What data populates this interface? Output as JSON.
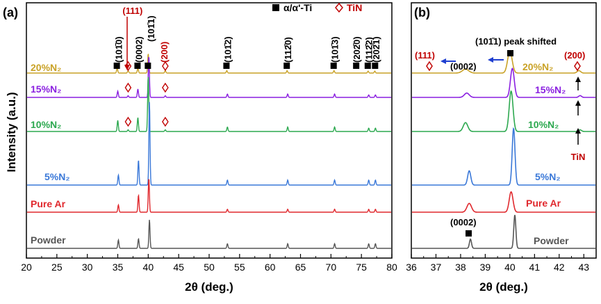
{
  "chart_data": [
    {
      "type": "line",
      "panel_label": "(a)",
      "xlabel": "2θ (deg.)",
      "ylabel": "Intensity (a.u.)",
      "xlim": [
        20,
        80
      ],
      "xticks": [
        "20",
        "25",
        "30",
        "35",
        "40",
        "45",
        "50",
        "55",
        "60",
        "65",
        "70",
        "75",
        "80"
      ],
      "legend": {
        "items": [
          {
            "marker": "square",
            "label": "α/α'-Ti"
          },
          {
            "marker": "diamond",
            "label": "TiN",
            "color": "#c00000"
          }
        ],
        "placement": "top-right"
      },
      "ti_peaks": [
        35.1,
        38.4,
        40.2,
        53.0,
        62.9,
        70.6,
        76.2,
        77.3
      ],
      "peak_labels": [
        {
          "x": 35.1,
          "text": "(101̄0)",
          "color": "#000000"
        },
        {
          "x": 36.7,
          "text": "(111)",
          "color": "#c00000"
        },
        {
          "x": 38.4,
          "text": "(0002)",
          "color": "#000000"
        },
        {
          "x": 40.2,
          "text": "(101̄1)",
          "color": "#000000"
        },
        {
          "x": 42.7,
          "text": "(200)",
          "color": "#c00000"
        },
        {
          "x": 53.0,
          "text": "(101̄2)",
          "color": "#000000"
        },
        {
          "x": 62.9,
          "text": "(112̄0)",
          "color": "#000000"
        },
        {
          "x": 70.6,
          "text": "(101̄3)",
          "color": "#000000"
        },
        {
          "x": 74.2,
          "text": "(202̄0)",
          "color": "#000000"
        },
        {
          "x": 76.2,
          "text": "(112̄2)",
          "color": "#000000"
        },
        {
          "x": 77.4,
          "text": "(202̄1)",
          "color": "#000000"
        }
      ],
      "series": [
        {
          "name": "20%N₂",
          "color": "#c9a227",
          "peaks": [
            [
              34.9,
              0.1
            ],
            [
              36.7,
              0.05
            ],
            [
              38.3,
              0.1
            ],
            [
              40.0,
              0.4
            ],
            [
              42.8,
              0.05
            ],
            [
              52.9,
              0.05
            ],
            [
              62.8,
              0.05
            ],
            [
              70.5,
              0.05
            ],
            [
              76.1,
              0.04
            ],
            [
              77.2,
              0.04
            ]
          ],
          "markers": [
            {
              "type": "square",
              "x": 34.9
            },
            {
              "type": "diamond",
              "x": 36.7
            },
            {
              "type": "square",
              "x": 38.3
            },
            {
              "type": "square",
              "x": 40.0
            },
            {
              "type": "diamond",
              "x": 42.8
            },
            {
              "type": "square",
              "x": 52.9
            },
            {
              "type": "square",
              "x": 62.8
            },
            {
              "type": "square",
              "x": 70.5
            },
            {
              "type": "square",
              "x": 74.2
            },
            {
              "type": "square",
              "x": 76.1
            },
            {
              "type": "square",
              "x": 77.3
            }
          ]
        },
        {
          "name": "15%N₂",
          "color": "#8a1fe0",
          "peaks": [
            [
              35.0,
              0.15
            ],
            [
              36.7,
              0.04
            ],
            [
              38.3,
              0.2
            ],
            [
              40.1,
              1.0
            ],
            [
              42.8,
              0.04
            ],
            [
              53.0,
              0.08
            ],
            [
              62.9,
              0.08
            ],
            [
              70.6,
              0.08
            ],
            [
              76.2,
              0.06
            ],
            [
              77.3,
              0.06
            ]
          ],
          "markers": [
            {
              "type": "diamond",
              "x": 36.7
            },
            {
              "type": "diamond",
              "x": 42.8
            }
          ]
        },
        {
          "name": "10%N₂",
          "color": "#2ca84f",
          "peaks": [
            [
              35.0,
              0.2
            ],
            [
              36.7,
              0.03
            ],
            [
              38.3,
              0.25
            ],
            [
              40.0,
              1.0
            ],
            [
              42.8,
              0.03
            ],
            [
              53.0,
              0.08
            ],
            [
              62.9,
              0.08
            ],
            [
              70.6,
              0.08
            ],
            [
              76.2,
              0.06
            ],
            [
              77.3,
              0.06
            ]
          ],
          "markers": [
            {
              "type": "diamond",
              "x": 36.7
            },
            {
              "type": "diamond",
              "x": 42.8
            }
          ]
        },
        {
          "name": "5%N₂",
          "color": "#3a78d8",
          "peaks": [
            [
              35.1,
              0.12
            ],
            [
              38.4,
              0.3
            ],
            [
              40.2,
              1.0
            ],
            [
              53.0,
              0.06
            ],
            [
              62.9,
              0.06
            ],
            [
              70.6,
              0.06
            ],
            [
              76.2,
              0.06
            ],
            [
              77.3,
              0.06
            ]
          ],
          "markers": []
        },
        {
          "name": "Pure Ar",
          "color": "#e0282d",
          "peaks": [
            [
              35.1,
              0.15
            ],
            [
              38.4,
              0.35
            ],
            [
              40.1,
              0.7
            ],
            [
              53.0,
              0.06
            ],
            [
              62.9,
              0.06
            ],
            [
              70.6,
              0.06
            ],
            [
              76.2,
              0.06
            ],
            [
              77.3,
              0.06
            ]
          ],
          "markers": []
        },
        {
          "name": "Powder",
          "color": "#555555",
          "peaks": [
            [
              35.1,
              0.22
            ],
            [
              38.4,
              0.25
            ],
            [
              40.2,
              0.75
            ],
            [
              53.0,
              0.12
            ],
            [
              62.9,
              0.12
            ],
            [
              70.6,
              0.12
            ],
            [
              76.2,
              0.12
            ],
            [
              77.3,
              0.12
            ]
          ],
          "markers": []
        }
      ]
    },
    {
      "type": "line",
      "panel_label": "(b)",
      "xlabel": "2θ (deg.)",
      "xlim": [
        36,
        43.5
      ],
      "xticks": [
        "36",
        "37",
        "38",
        "39",
        "40",
        "41",
        "42",
        "43"
      ],
      "annotations": [
        {
          "text": "(101̄1) peak shifted",
          "color": "#000000"
        },
        {
          "text": "(0002)",
          "color": "#000000"
        },
        {
          "text": "(111)",
          "color": "#c00000"
        },
        {
          "text": "(200)",
          "color": "#c00000"
        },
        {
          "text": "TiN",
          "color": "#c00000"
        },
        {
          "text": "(0002)",
          "color": "#000000"
        }
      ],
      "series": [
        {
          "name": "20%N₂",
          "color": "#c9a227",
          "peaks": [
            [
              38.2,
              0.08,
              0.18
            ],
            [
              40.0,
              0.45,
              0.13
            ],
            [
              42.8,
              0.05,
              0.1
            ]
          ]
        },
        {
          "name": "15%N₂",
          "color": "#8a1fe0",
          "peaks": [
            [
              38.25,
              0.12,
              0.14
            ],
            [
              40.1,
              0.8,
              0.11
            ],
            [
              42.85,
              0.05,
              0.08
            ]
          ]
        },
        {
          "name": "10%N₂",
          "color": "#2ca84f",
          "peaks": [
            [
              38.2,
              0.22,
              0.13
            ],
            [
              40.05,
              1.0,
              0.11
            ],
            [
              42.85,
              0.04,
              0.08
            ]
          ]
        },
        {
          "name": "5%N₂",
          "color": "#3a78d8",
          "peaks": [
            [
              38.35,
              0.3,
              0.09
            ],
            [
              40.15,
              1.2,
              0.08
            ]
          ]
        },
        {
          "name": "Pure Ar",
          "color": "#e0282d",
          "peaks": [
            [
              38.35,
              0.28,
              0.13
            ],
            [
              40.05,
              0.65,
              0.11
            ]
          ]
        },
        {
          "name": "Powder",
          "color": "#555555",
          "peaks": [
            [
              38.4,
              0.22,
              0.06
            ],
            [
              40.2,
              0.8,
              0.06
            ]
          ]
        }
      ]
    }
  ]
}
